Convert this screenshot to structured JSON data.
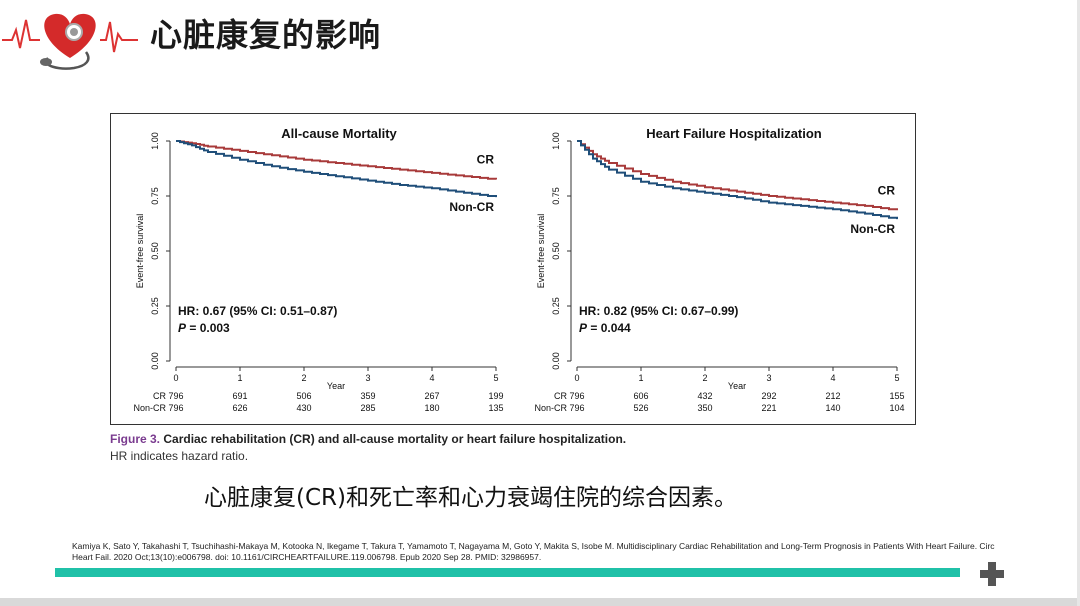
{
  "slide": {
    "title": "心脏康复的影响"
  },
  "colors": {
    "cr_line": "#a83a3a",
    "noncr_line": "#1f4e79",
    "accent": "#20c1a8",
    "figure_label": "#7a3b8f"
  },
  "figure": {
    "caption_label": "Figure 3.",
    "caption_text": "Cardiac rehabilitation (CR) and all-cause mortality or heart failure hospitalization.",
    "note": "HR indicates hazard ratio."
  },
  "chart_data": [
    {
      "type": "line",
      "title": "All-cause Mortality",
      "xlabel": "Year",
      "ylabel": "Event-free survival",
      "xlim": [
        0,
        5
      ],
      "ylim": [
        0,
        1
      ],
      "x_ticks": [
        "0",
        "1",
        "2",
        "3",
        "4",
        "5"
      ],
      "y_ticks": [
        "0.00",
        "0.25",
        "0.50",
        "0.75",
        "1.00"
      ],
      "series": [
        {
          "name": "CR",
          "color": "#a83a3a",
          "x": [
            0,
            0.25,
            0.5,
            1,
            1.5,
            2,
            2.5,
            3,
            3.5,
            4,
            4.5,
            5
          ],
          "y": [
            1.0,
            0.99,
            0.975,
            0.955,
            0.935,
            0.915,
            0.9,
            0.885,
            0.87,
            0.855,
            0.84,
            0.825
          ]
        },
        {
          "name": "Non-CR",
          "color": "#1f4e79",
          "x": [
            0,
            0.25,
            0.5,
            1,
            1.5,
            2,
            2.5,
            3,
            3.5,
            4,
            4.5,
            5
          ],
          "y": [
            1.0,
            0.98,
            0.95,
            0.915,
            0.885,
            0.86,
            0.84,
            0.82,
            0.8,
            0.785,
            0.765,
            0.745
          ]
        }
      ],
      "annotations": {
        "hr": "HR: 0.67 (95% CI: 0.51–0.87)",
        "p_label": "P",
        "p_value": " = 0.003"
      },
      "risk_table": {
        "CR": [
          "796",
          "691",
          "506",
          "359",
          "267",
          "199"
        ],
        "Non-CR": [
          "796",
          "626",
          "430",
          "285",
          "180",
          "135"
        ]
      }
    },
    {
      "type": "line",
      "title": "Heart Failure Hospitalization",
      "xlabel": "Year",
      "ylabel": "Event-free survival",
      "xlim": [
        0,
        5
      ],
      "ylim": [
        0,
        1
      ],
      "x_ticks": [
        "0",
        "1",
        "2",
        "3",
        "4",
        "5"
      ],
      "y_ticks": [
        "0.00",
        "0.25",
        "0.50",
        "0.75",
        "1.00"
      ],
      "series": [
        {
          "name": "CR",
          "color": "#a83a3a",
          "x": [
            0,
            0.25,
            0.5,
            1,
            1.5,
            2,
            2.5,
            3,
            3.5,
            4,
            4.5,
            5
          ],
          "y": [
            1.0,
            0.94,
            0.9,
            0.85,
            0.815,
            0.79,
            0.77,
            0.75,
            0.735,
            0.72,
            0.705,
            0.685
          ]
        },
        {
          "name": "Non-CR",
          "color": "#1f4e79",
          "x": [
            0,
            0.25,
            0.5,
            1,
            1.5,
            2,
            2.5,
            3,
            3.5,
            4,
            4.5,
            5
          ],
          "y": [
            1.0,
            0.92,
            0.87,
            0.815,
            0.785,
            0.765,
            0.745,
            0.72,
            0.705,
            0.69,
            0.67,
            0.645
          ]
        }
      ],
      "annotations": {
        "hr": "HR: 0.82 (95% CI: 0.67–0.99)",
        "p_label": "P",
        "p_value": " = 0.044"
      },
      "risk_table": {
        "CR": [
          "796",
          "606",
          "432",
          "292",
          "212",
          "155"
        ],
        "Non-CR": [
          "796",
          "526",
          "350",
          "221",
          "140",
          "104"
        ]
      }
    }
  ],
  "summary": "心脏康复(CR)和死亡率和心力衰竭住院的综合因素。",
  "reference": "Kamiya K, Sato Y, Takahashi T, Tsuchihashi-Makaya M, Kotooka N, Ikegame T, Takura T, Yamamoto T, Nagayama M, Goto Y, Makita S, Isobe M. Multidisciplinary Cardiac Rehabilitation and Long-Term Prognosis in Patients With Heart Failure. Circ Heart Fail. 2020 Oct;13(10):e006798. doi: 10.1161/CIRCHEARTFAILURE.119.006798. Epub 2020 Sep 28. PMID: 32986957."
}
